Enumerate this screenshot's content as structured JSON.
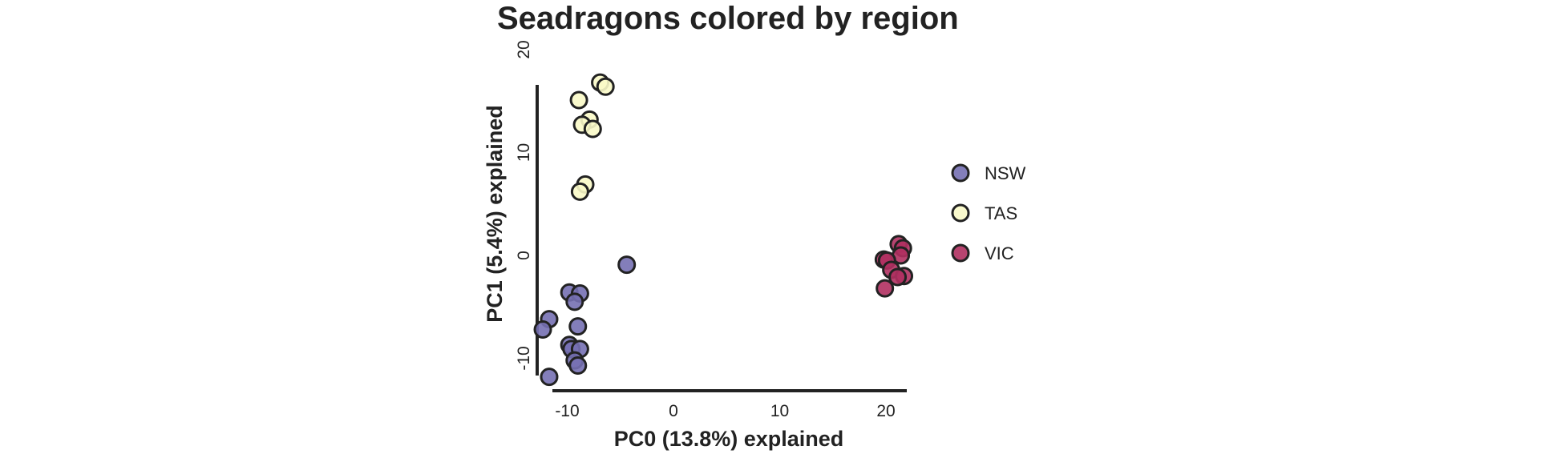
{
  "chart_data": {
    "type": "scatter",
    "title": "Seadragons colored by region",
    "xlabel": "PC0 (13.8%) explained",
    "ylabel": "PC1 (5.4%) explained",
    "xlim": [
      -12,
      22
    ],
    "ylim": [
      -12,
      19
    ],
    "xticks": [
      -10,
      0,
      10,
      20
    ],
    "xtick_labels": [
      "-10",
      "0",
      "10",
      "20"
    ],
    "yticks": [
      -10,
      0,
      10,
      20
    ],
    "ytick_labels": [
      "-10",
      "0",
      "10",
      "20"
    ],
    "grid": false,
    "legend_position": "right",
    "series": [
      {
        "name": "NSW",
        "color": "#7570b3",
        "points": [
          [
            -4.4,
            -0.9
          ],
          [
            -9.8,
            -3.6
          ],
          [
            -8.8,
            -3.7
          ],
          [
            -9.3,
            -4.5
          ],
          [
            -11.7,
            -6.2
          ],
          [
            -12.3,
            -7.2
          ],
          [
            -9.0,
            -6.9
          ],
          [
            -9.8,
            -8.7
          ],
          [
            -9.6,
            -9.1
          ],
          [
            -8.8,
            -9.1
          ],
          [
            -9.3,
            -10.2
          ],
          [
            -9.0,
            -10.7
          ],
          [
            -11.7,
            -11.8
          ]
        ]
      },
      {
        "name": "TAS",
        "color": "#fafac8",
        "points": [
          [
            -6.9,
            16.8
          ],
          [
            -6.4,
            16.4
          ],
          [
            -8.9,
            15.1
          ],
          [
            -7.9,
            13.2
          ],
          [
            -8.6,
            12.7
          ],
          [
            -7.6,
            12.3
          ],
          [
            -8.3,
            6.9
          ],
          [
            -8.8,
            6.2
          ]
        ]
      },
      {
        "name": "VIC",
        "color": "#b03060",
        "points": [
          [
            21.2,
            1.1
          ],
          [
            21.6,
            0.7
          ],
          [
            21.4,
            0.0
          ],
          [
            19.8,
            -0.4
          ],
          [
            20.1,
            -0.5
          ],
          [
            20.5,
            -1.4
          ],
          [
            21.7,
            -2.0
          ],
          [
            21.1,
            -2.1
          ],
          [
            19.9,
            -3.2
          ]
        ]
      }
    ]
  }
}
